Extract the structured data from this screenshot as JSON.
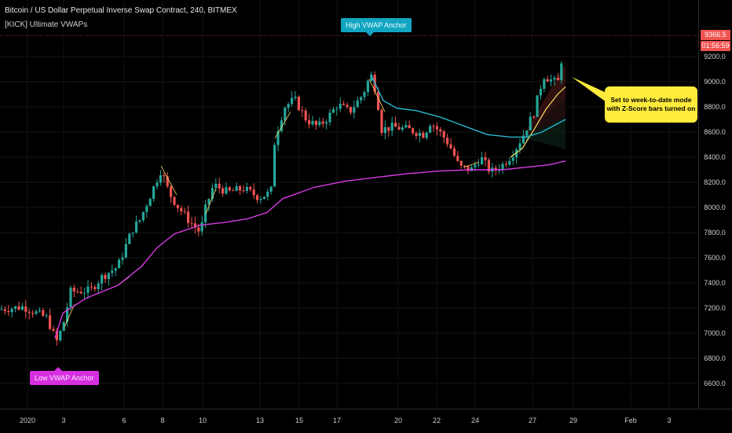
{
  "header": {
    "title": "Bitcoin / US Dollar Perpetual Inverse Swap Contract, 240, BITMEX",
    "indicator": "[KICK] Ultimate VWAPs"
  },
  "annotations": {
    "high_anchor": "High VWAP Anchor",
    "low_anchor": "Low VWAP Anchor",
    "callout_line1": "Set to week-to-date mode",
    "callout_line2": "with Z-Score bars turned on"
  },
  "price_axis": {
    "last_price": "9366.5",
    "countdown": "01:56:59"
  },
  "colors": {
    "up": "#26a69a",
    "down": "#ef5350",
    "anchored_low_vwap": "#d63ae0",
    "anchored_high_vwap": "#29b6d0",
    "weekly_vwap": "#ffe066",
    "last_price_line": "#ef5350",
    "callout": "#ffeb3b"
  },
  "chart_data": {
    "type": "candlestick",
    "y_ticks": [
      6600,
      6800,
      7000,
      7200,
      7400,
      7600,
      7800,
      8000,
      8200,
      8400,
      8600,
      8800,
      9000,
      9200
    ],
    "x_ticks": [
      "2020",
      "3",
      "6",
      "8",
      "10",
      "13",
      "15",
      "17",
      "20",
      "22",
      "24",
      "27",
      "29",
      "Feb",
      "3"
    ],
    "ylim": [
      6400,
      9650
    ],
    "close_series_anchors": [
      {
        "x": 0,
        "close": 7190
      },
      {
        "x": 30,
        "close": 7210
      },
      {
        "x": 60,
        "close": 7120
      },
      {
        "x": 72,
        "close": 6930
      },
      {
        "x": 80,
        "close": 7060
      },
      {
        "x": 90,
        "close": 7330
      },
      {
        "x": 115,
        "close": 7340
      },
      {
        "x": 130,
        "close": 7450
      },
      {
        "x": 150,
        "close": 7530
      },
      {
        "x": 168,
        "close": 7820
      },
      {
        "x": 178,
        "close": 7900
      },
      {
        "x": 195,
        "close": 8150
      },
      {
        "x": 205,
        "close": 8300
      },
      {
        "x": 215,
        "close": 8120
      },
      {
        "x": 225,
        "close": 8020
      },
      {
        "x": 240,
        "close": 7900
      },
      {
        "x": 255,
        "close": 7800
      },
      {
        "x": 262,
        "close": 8000
      },
      {
        "x": 272,
        "close": 8180
      },
      {
        "x": 290,
        "close": 8120
      },
      {
        "x": 310,
        "close": 8150
      },
      {
        "x": 330,
        "close": 8080
      },
      {
        "x": 345,
        "close": 8120
      },
      {
        "x": 350,
        "close": 8550
      },
      {
        "x": 362,
        "close": 8800
      },
      {
        "x": 375,
        "close": 8860
      },
      {
        "x": 390,
        "close": 8700
      },
      {
        "x": 405,
        "close": 8640
      },
      {
        "x": 418,
        "close": 8720
      },
      {
        "x": 430,
        "close": 8820
      },
      {
        "x": 445,
        "close": 8760
      },
      {
        "x": 462,
        "close": 8900
      },
      {
        "x": 472,
        "close": 9060
      },
      {
        "x": 480,
        "close": 8900
      },
      {
        "x": 485,
        "close": 8620
      },
      {
        "x": 500,
        "close": 8640
      },
      {
        "x": 520,
        "close": 8620
      },
      {
        "x": 540,
        "close": 8580
      },
      {
        "x": 548,
        "close": 8680
      },
      {
        "x": 560,
        "close": 8600
      },
      {
        "x": 572,
        "close": 8500
      },
      {
        "x": 585,
        "close": 8320
      },
      {
        "x": 600,
        "close": 8300
      },
      {
        "x": 612,
        "close": 8400
      },
      {
        "x": 625,
        "close": 8280
      },
      {
        "x": 640,
        "close": 8340
      },
      {
        "x": 652,
        "close": 8420
      },
      {
        "x": 665,
        "close": 8560
      },
      {
        "x": 680,
        "close": 8760
      },
      {
        "x": 692,
        "close": 9050
      },
      {
        "x": 705,
        "close": 9000
      },
      {
        "x": 712,
        "close": 9000
      },
      {
        "x": 718,
        "close": 9366.5
      }
    ],
    "series": [
      {
        "name": "",
        "color": "#d63ae0",
        "points": [
          [
            70,
            6960
          ],
          [
            80,
            7160
          ],
          [
            110,
            7280
          ],
          [
            150,
            7380
          ],
          [
            180,
            7530
          ],
          [
            200,
            7680
          ],
          [
            222,
            7790
          ],
          [
            255,
            7860
          ],
          [
            285,
            7880
          ],
          [
            315,
            7910
          ],
          [
            340,
            7960
          ],
          [
            360,
            8070
          ],
          [
            400,
            8160
          ],
          [
            440,
            8210
          ],
          [
            480,
            8240
          ],
          [
            520,
            8270
          ],
          [
            560,
            8290
          ],
          [
            600,
            8300
          ],
          [
            640,
            8300
          ],
          [
            670,
            8320
          ],
          [
            700,
            8340
          ],
          [
            720,
            8370
          ]
        ]
      },
      {
        "name": "",
        "color": "#29b6d0",
        "points": [
          [
            472,
            9060
          ],
          [
            488,
            8850
          ],
          [
            505,
            8790
          ],
          [
            530,
            8770
          ],
          [
            560,
            8720
          ],
          [
            590,
            8650
          ],
          [
            620,
            8580
          ],
          [
            650,
            8560
          ],
          [
            670,
            8560
          ],
          [
            690,
            8600
          ],
          [
            705,
            8650
          ],
          [
            720,
            8700
          ]
        ]
      }
    ]
  }
}
